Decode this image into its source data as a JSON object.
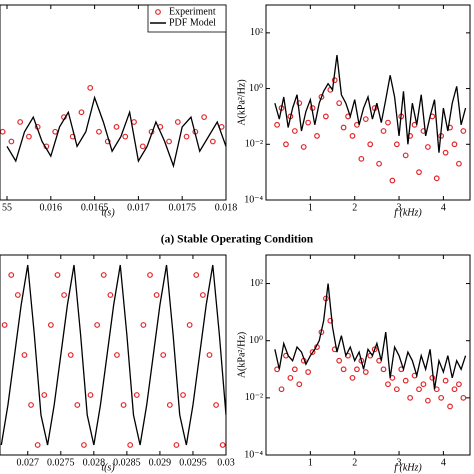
{
  "caption": "(a) Stable Operating Condition",
  "chart_data": [
    {
      "type": "line",
      "xlabel": "t(s)",
      "legend": "upper right",
      "xlim": [
        0.01542,
        0.018
      ],
      "ylim": [
        -3,
        1
      ],
      "xticks": [
        {
          "value": 0.0155,
          "label": "55"
        },
        0.016,
        0.0165,
        0.017,
        0.0175,
        0.018
      ],
      "series": [
        {
          "name": "Experiment",
          "color": "#e3262b",
          "style": "markers",
          "x": [
            0.01545,
            0.01555,
            0.01565,
            0.01575,
            0.01585,
            0.01595,
            0.01605,
            0.01615,
            0.01625,
            0.01635,
            0.01645,
            0.01655,
            0.01665,
            0.01675,
            0.01685,
            0.01695,
            0.01705,
            0.01715,
            0.01725,
            0.01735,
            0.01745,
            0.01755,
            0.01765,
            0.01775,
            0.01785,
            0.01795
          ],
          "values": [
            -1.6,
            -1.8,
            -1.4,
            -1.7,
            -1.5,
            -1.9,
            -1.6,
            -1.3,
            -1.7,
            -1.2,
            -0.7,
            -1.6,
            -1.8,
            -1.5,
            -1.7,
            -1.4,
            -1.9,
            -1.6,
            -1.5,
            -1.8,
            -1.4,
            -1.7,
            -1.6,
            -1.3,
            -1.8,
            -1.5
          ]
        },
        {
          "name": "PDF Model",
          "color": "#000000",
          "style": "line",
          "x": [
            0.0155,
            0.0156,
            0.0157,
            0.0158,
            0.0159,
            0.016,
            0.0161,
            0.0162,
            0.0163,
            0.0164,
            0.0165,
            0.0166,
            0.0167,
            0.0168,
            0.0169,
            0.017,
            0.0171,
            0.0172,
            0.0173,
            0.0174,
            0.0175,
            0.0176,
            0.0177,
            0.0178,
            0.0179,
            0.018
          ],
          "values": [
            -1.9,
            -2.2,
            -1.6,
            -1.3,
            -1.8,
            -2.1,
            -1.5,
            -1.2,
            -1.9,
            -1.6,
            -0.9,
            -1.4,
            -2.0,
            -1.7,
            -1.2,
            -2.2,
            -1.9,
            -1.4,
            -1.8,
            -2.3,
            -1.5,
            -1.3,
            -2.0,
            -1.7,
            -1.4,
            -1.9
          ]
        }
      ]
    },
    {
      "type": "line",
      "xlabel": "f (kHz)",
      "ylabel": "A(kPa²/Hz)",
      "yscale": "log",
      "xlim": [
        0,
        4.6
      ],
      "ylim": [
        0.0001,
        1000
      ],
      "xticks": [
        1,
        2,
        3,
        4
      ],
      "yticks": [
        {
          "value": 100,
          "label": "10²"
        },
        {
          "value": 1,
          "label": "10⁰"
        },
        {
          "value": 0.01,
          "label": "10⁻²"
        },
        {
          "value": 0.0001,
          "label": "10⁻⁴"
        }
      ],
      "series": [
        {
          "color": "#e3262b",
          "style": "markers",
          "x": [
            0.25,
            0.35,
            0.45,
            0.55,
            0.65,
            0.75,
            0.85,
            0.95,
            1.05,
            1.15,
            1.25,
            1.35,
            1.45,
            1.55,
            1.65,
            1.75,
            1.85,
            1.95,
            2.05,
            2.15,
            2.25,
            2.35,
            2.45,
            2.55,
            2.65,
            2.75,
            2.85,
            2.95,
            3.05,
            3.15,
            3.25,
            3.35,
            3.45,
            3.55,
            3.65,
            3.75,
            3.85,
            3.95,
            4.05,
            4.15,
            4.25,
            4.35,
            4.45
          ],
          "values": [
            0.05,
            0.2,
            0.01,
            0.1,
            0.03,
            0.3,
            0.008,
            0.06,
            0.2,
            0.02,
            0.5,
            0.1,
            0.9,
            2,
            0.3,
            0.04,
            0.1,
            0.02,
            0.05,
            0.003,
            0.08,
            0.01,
            0.2,
            0.002,
            0.03,
            0.06,
            0.0005,
            0.01,
            0.1,
            0.004,
            0.02,
            0.05,
            0.001,
            0.03,
            0.008,
            0.1,
            0.0006,
            0.02,
            0.005,
            0.04,
            0.01,
            0.002,
            0.03
          ]
        },
        {
          "color": "#000000",
          "style": "line",
          "x": [
            0.2,
            0.3,
            0.4,
            0.5,
            0.6,
            0.7,
            0.8,
            0.9,
            1.0,
            1.1,
            1.2,
            1.3,
            1.4,
            1.5,
            1.6,
            1.7,
            1.8,
            1.9,
            2.0,
            2.1,
            2.2,
            2.3,
            2.4,
            2.5,
            2.6,
            2.7,
            2.8,
            2.9,
            3.0,
            3.1,
            3.2,
            3.3,
            3.4,
            3.5,
            3.6,
            3.7,
            3.8,
            3.9,
            4.0,
            4.1,
            4.2,
            4.3,
            4.4,
            4.5
          ],
          "values": [
            0.3,
            0.08,
            0.5,
            0.04,
            0.2,
            0.6,
            0.03,
            0.15,
            0.4,
            0.05,
            0.3,
            0.8,
            1.5,
            0.9,
            16,
            0.6,
            0.3,
            0.1,
            0.4,
            0.05,
            0.2,
            0.5,
            0.08,
            0.3,
            0.06,
            0.4,
            3,
            0.5,
            0.02,
            0.8,
            0.01,
            0.3,
            0.05,
            0.6,
            0.02,
            0.1,
            0.4,
            0.005,
            0.2,
            0.03,
            0.3,
            1.2,
            0.05,
            0.2
          ]
        }
      ]
    },
    {
      "type": "line",
      "xlabel": "t(s)",
      "xlim": [
        0.02658,
        0.03
      ],
      "ylim": [
        -1,
        1
      ],
      "xticks": [
        0.027,
        0.0275,
        0.028,
        0.0285,
        0.029,
        0.0295,
        0.03
      ],
      "series": [
        {
          "color": "#e3262b",
          "style": "markers",
          "x": [
            0.02665,
            0.02675,
            0.02685,
            0.02695,
            0.02705,
            0.02715,
            0.02725,
            0.02735,
            0.02745,
            0.02755,
            0.02765,
            0.02775,
            0.02785,
            0.02795,
            0.02805,
            0.02815,
            0.02825,
            0.02835,
            0.02845,
            0.02855,
            0.02865,
            0.02875,
            0.02885,
            0.02895,
            0.02905,
            0.02915,
            0.02925,
            0.02935,
            0.02945,
            0.02955,
            0.02965,
            0.02975,
            0.02985,
            0.02995
          ],
          "values": [
            0.3,
            0.8,
            0.6,
            0,
            -0.5,
            -0.9,
            -0.4,
            0.3,
            0.8,
            0.6,
            0,
            -0.5,
            -0.9,
            -0.4,
            0.3,
            0.8,
            0.6,
            0,
            -0.5,
            -0.9,
            -0.4,
            0.3,
            0.8,
            0.6,
            0,
            -0.5,
            -0.9,
            -0.4,
            0.3,
            0.8,
            0.6,
            0,
            -0.5,
            -0.9
          ]
        },
        {
          "color": "#000000",
          "style": "line",
          "x": [
            0.0266,
            0.0267,
            0.0268,
            0.0269,
            0.027,
            0.0271,
            0.0272,
            0.0273,
            0.0274,
            0.0275,
            0.0276,
            0.0277,
            0.0278,
            0.0279,
            0.028,
            0.0281,
            0.0282,
            0.0283,
            0.0284,
            0.0285,
            0.0286,
            0.0287,
            0.0288,
            0.0289,
            0.029,
            0.0291,
            0.0292,
            0.0293,
            0.0294,
            0.0295,
            0.0296,
            0.0297,
            0.0298,
            0.0299,
            0.03
          ],
          "values": [
            -0.9,
            -0.5,
            0,
            0.5,
            0.9,
            0.2,
            -0.6,
            -0.9,
            -0.5,
            0,
            0.5,
            0.9,
            0.2,
            -0.6,
            -0.9,
            -0.5,
            0,
            0.5,
            0.9,
            0.2,
            -0.6,
            -0.9,
            -0.5,
            0,
            0.5,
            0.9,
            0.2,
            -0.6,
            -0.9,
            -0.5,
            0,
            0.5,
            0.9,
            0.2,
            -0.6
          ]
        }
      ]
    },
    {
      "type": "line",
      "xlabel": "f (kHz)",
      "ylabel": "A(kPa²/Hz)",
      "yscale": "log",
      "xlim": [
        0,
        4.6
      ],
      "ylim": [
        0.0001,
        1000
      ],
      "xticks": [
        1,
        2,
        3,
        4
      ],
      "yticks": [
        {
          "value": 100,
          "label": "10²"
        },
        {
          "value": 1,
          "label": "10⁰"
        },
        {
          "value": 0.01,
          "label": "10⁻²"
        },
        {
          "value": 0.0001,
          "label": "10⁻⁴"
        }
      ],
      "series": [
        {
          "color": "#e3262b",
          "style": "markers",
          "x": [
            0.25,
            0.35,
            0.45,
            0.55,
            0.65,
            0.75,
            0.85,
            0.95,
            1.05,
            1.15,
            1.25,
            1.35,
            1.45,
            1.55,
            1.65,
            1.75,
            1.85,
            1.95,
            2.05,
            2.15,
            2.25,
            2.35,
            2.45,
            2.55,
            2.65,
            2.75,
            2.85,
            2.95,
            3.05,
            3.15,
            3.25,
            3.35,
            3.45,
            3.55,
            3.65,
            3.75,
            3.85,
            3.95,
            4.05,
            4.15,
            4.25,
            4.35,
            4.45
          ],
          "values": [
            0.1,
            0.02,
            0.3,
            0.05,
            0.1,
            0.03,
            0.2,
            0.08,
            0.4,
            0.6,
            2,
            30,
            5,
            0.5,
            0.2,
            0.1,
            0.3,
            0.05,
            0.1,
            0.2,
            0.08,
            0.3,
            0.5,
            0.2,
            0.1,
            0.03,
            0.05,
            0.02,
            0.1,
            0.04,
            0.01,
            0.06,
            0.02,
            0.03,
            0.008,
            0.05,
            0.02,
            0.01,
            0.04,
            0.005,
            0.02,
            0.03,
            0.01
          ]
        },
        {
          "color": "#000000",
          "style": "line",
          "x": [
            0.2,
            0.3,
            0.4,
            0.5,
            0.6,
            0.7,
            0.8,
            0.9,
            1.0,
            1.1,
            1.2,
            1.3,
            1.4,
            1.5,
            1.6,
            1.7,
            1.8,
            1.9,
            2.0,
            2.1,
            2.2,
            2.3,
            2.4,
            2.5,
            2.6,
            2.7,
            2.8,
            2.9,
            3.0,
            3.1,
            3.2,
            3.3,
            3.4,
            3.5,
            3.6,
            3.7,
            3.8,
            3.9,
            4.0,
            4.1,
            4.2,
            4.3,
            4.4,
            4.5
          ],
          "values": [
            0.5,
            0.1,
            0.8,
            0.3,
            0.2,
            0.6,
            0.4,
            0.15,
            0.3,
            0.5,
            1,
            5,
            100,
            3,
            0.4,
            1.5,
            0.3,
            0.6,
            0.2,
            0.4,
            0.1,
            0.5,
            0.3,
            0.8,
            0.2,
            2,
            0.05,
            0.6,
            0.3,
            0.1,
            0.4,
            0.2,
            0.06,
            0.3,
            0.1,
            0.5,
            0.02,
            0.2,
            0.08,
            0.3,
            0.05,
            0.2,
            0.1,
            0.3
          ]
        }
      ]
    }
  ]
}
